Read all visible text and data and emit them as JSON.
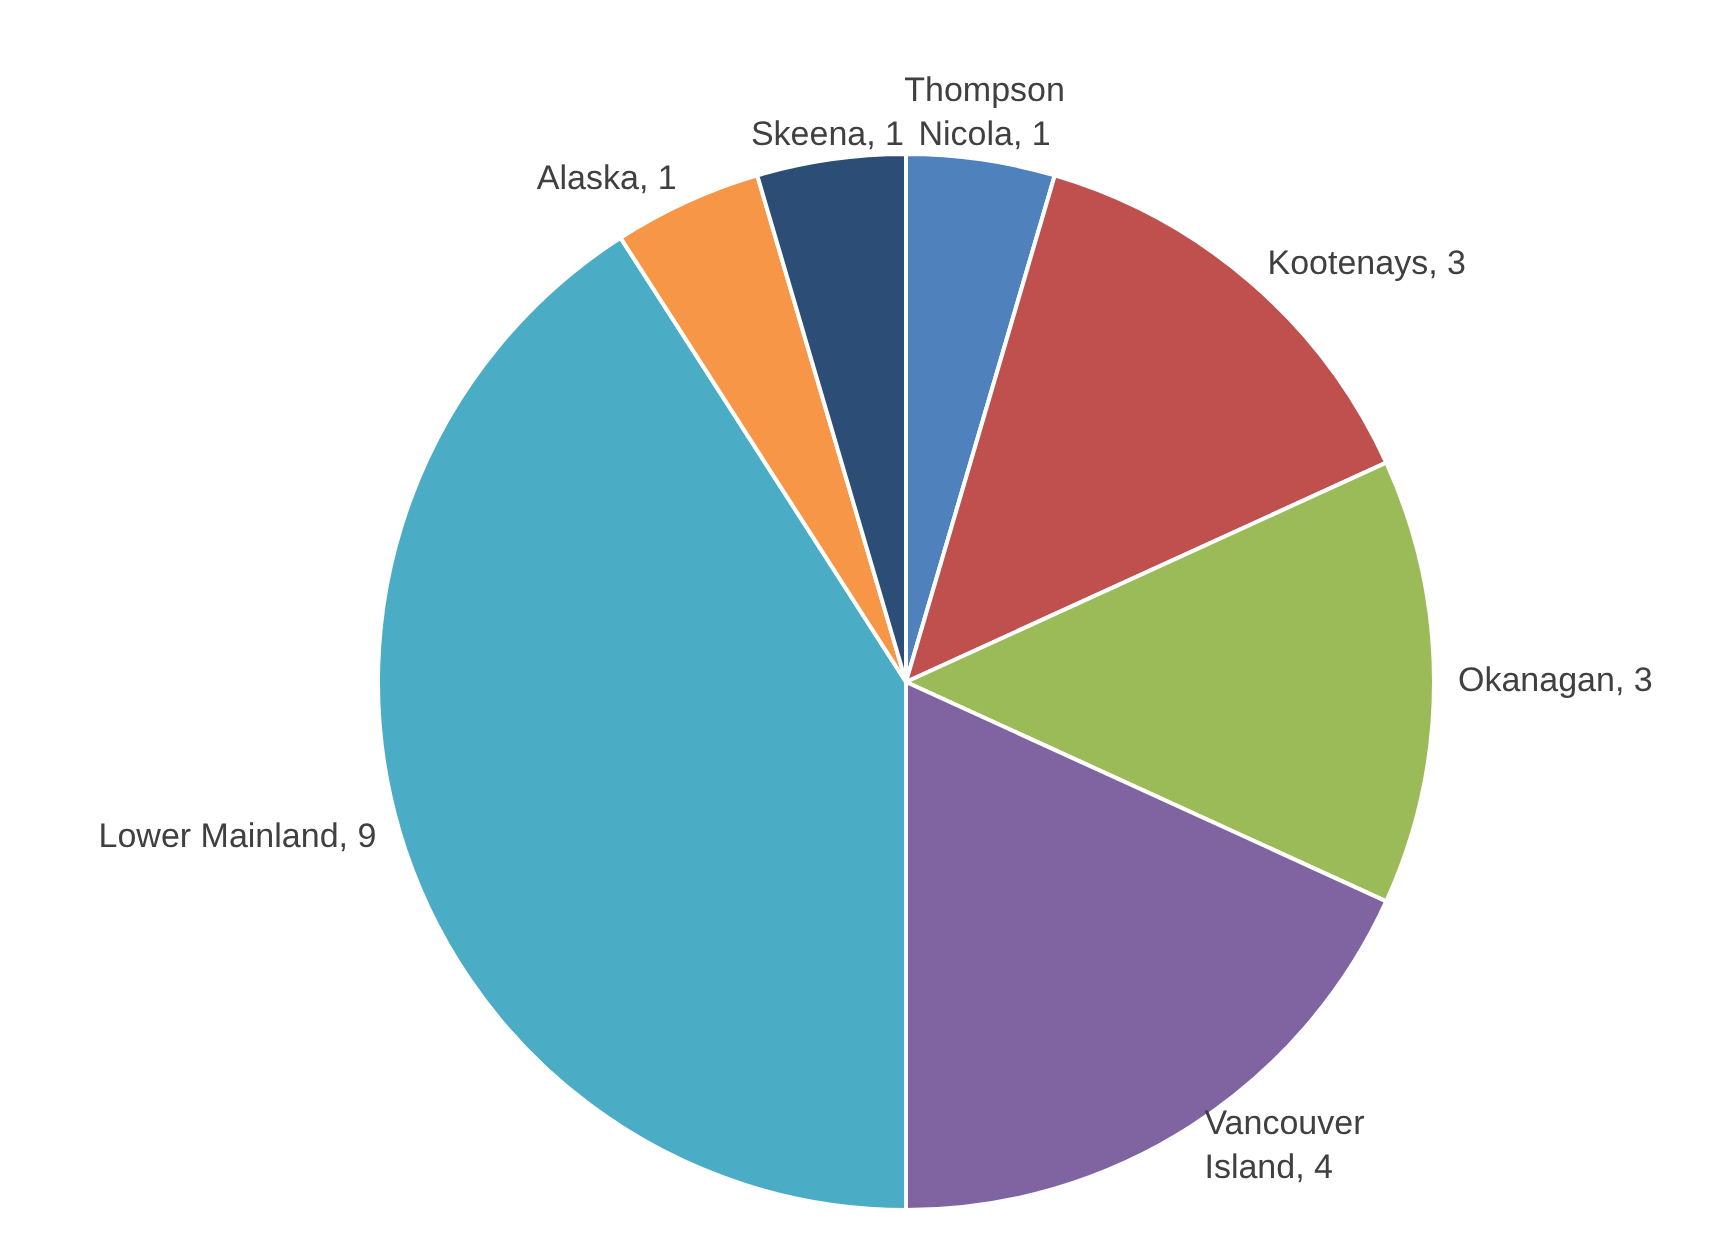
{
  "chart_data": {
    "type": "pie",
    "categories": [
      "Thompson Nicola",
      "Kootenays",
      "Okanagan",
      "Vancouver Island",
      "Lower Mainland",
      "Alaska",
      "Skeena"
    ],
    "values": [
      1,
      3,
      3,
      4,
      9,
      1,
      1
    ],
    "colors": [
      "#4f81bd",
      "#c0504d",
      "#9bbb59",
      "#8064a2",
      "#4bacc6",
      "#f79646",
      "#2c4d75"
    ],
    "value_labels": [
      ", 1",
      ", 3",
      ", 3",
      ", 4",
      ", 9",
      ", 1",
      ", 1"
    ],
    "legend": false
  }
}
